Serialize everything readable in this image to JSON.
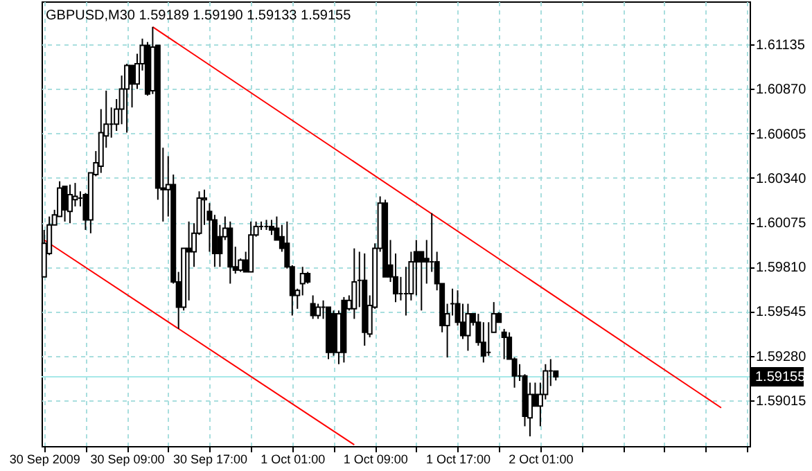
{
  "chart_data": {
    "type": "candlestick",
    "title": "GBPUSD,M30 1.59189 1.59190 1.59133 1.59155",
    "categories": [
      "30 Sep 2009",
      null,
      null,
      null,
      null,
      null,
      null,
      null,
      null,
      null,
      null,
      null,
      null,
      null,
      null,
      null,
      "30 Sep 09:00",
      null,
      null,
      null,
      null,
      null,
      null,
      null,
      null,
      null,
      null,
      null,
      null,
      null,
      null,
      null,
      "30 Sep 17:00",
      null,
      null,
      null,
      null,
      null,
      null,
      null,
      null,
      null,
      null,
      null,
      null,
      null,
      null,
      null,
      "1 Oct 01:00",
      null,
      null,
      null,
      null,
      null,
      null,
      null,
      null,
      null,
      null,
      null,
      null,
      null,
      null,
      null,
      "1 Oct 09:00",
      null,
      null,
      null,
      null,
      null,
      null,
      null,
      null,
      null,
      null,
      null,
      null,
      null,
      null,
      null,
      "1 Oct 17:00",
      null,
      null,
      null,
      null,
      null,
      null,
      null,
      null,
      null,
      null,
      null,
      null,
      null,
      null,
      null,
      "2 Oct 01:00",
      null,
      null,
      null,
      null,
      null,
      null,
      null,
      null,
      null,
      null,
      null,
      null,
      null,
      null,
      null,
      null,
      null,
      null,
      null,
      null,
      null,
      null,
      null,
      null,
      null,
      null,
      null,
      null,
      null,
      null,
      null,
      null,
      null,
      null,
      null,
      null,
      null,
      null,
      null,
      null
    ],
    "ohlc": [
      [
        1.5975,
        1.6003,
        1.5975,
        1.5995
      ],
      [
        1.5989,
        1.6011,
        1.5988,
        1.6006
      ],
      [
        1.6006,
        1.6015,
        1.6006,
        1.6012
      ],
      [
        1.6011,
        1.6032,
        1.6011,
        1.6028
      ],
      [
        1.6029,
        1.6029,
        1.6008,
        1.6015
      ],
      [
        1.6014,
        1.603,
        1.6007,
        1.6024
      ],
      [
        1.6021,
        1.6031,
        1.6017,
        1.6023
      ],
      [
        1.6022,
        1.6026,
        1.6017,
        1.6022
      ],
      [
        1.6024,
        1.6025,
        1.6003,
        1.6009
      ],
      [
        1.6009,
        1.6037,
        1.6001,
        1.6037
      ],
      [
        1.6036,
        1.605,
        1.6035,
        1.6043
      ],
      [
        1.6041,
        1.6075,
        1.6037,
        1.6061
      ],
      [
        1.6059,
        1.6086,
        1.6052,
        1.6066
      ],
      [
        1.6066,
        1.6076,
        1.6058,
        1.6066
      ],
      [
        1.6066,
        1.6081,
        1.6062,
        1.6075
      ],
      [
        1.6075,
        1.6095,
        1.6066,
        1.6087
      ],
      [
        1.6087,
        1.6102,
        1.6061,
        1.6101
      ],
      [
        1.6101,
        1.6101,
        1.6076,
        1.609
      ],
      [
        1.609,
        1.6108,
        1.6087,
        1.6102
      ],
      [
        1.6102,
        1.6117,
        1.6098,
        1.6113
      ],
      [
        1.6113,
        1.6115,
        1.6083,
        1.6084
      ],
      [
        1.6086,
        1.6124,
        1.6084,
        1.6112
      ],
      [
        1.6113,
        1.6113,
        1.6021,
        1.6028
      ],
      [
        1.6028,
        1.6052,
        1.6008,
        1.6027
      ],
      [
        1.6027,
        1.6047,
        1.6011,
        1.603
      ],
      [
        1.603,
        1.6036,
        1.5971,
        1.5972
      ],
      [
        1.5972,
        1.5978,
        1.5944,
        1.5957
      ],
      [
        1.5957,
        1.5992,
        1.5955,
        1.5992
      ],
      [
        1.5992,
        1.6008,
        1.5961,
        1.599
      ],
      [
        1.599,
        1.6007,
        1.5981,
        1.6001
      ],
      [
        1.6001,
        1.6026,
        1.6,
        1.6022
      ],
      [
        1.6021,
        1.6027,
        1.6006,
        1.6022
      ],
      [
        1.6014,
        1.6019,
        1.599,
        1.6009
      ],
      [
        1.6009,
        1.6012,
        1.5981,
        1.5989
      ],
      [
        1.5999,
        1.6006,
        1.5981,
        1.5989
      ],
      [
        1.5999,
        1.6011,
        1.5997,
        1.6004
      ],
      [
        1.6004,
        1.6008,
        1.5971,
        1.5981
      ],
      [
        1.5981,
        1.5993,
        1.5977,
        1.5979
      ],
      [
        1.5979,
        1.5986,
        1.5978,
        1.5985
      ],
      [
        1.5985,
        1.599,
        1.5978,
        1.5978
      ],
      [
        1.5978,
        1.6008,
        1.5978,
        1.6
      ],
      [
        1.6,
        1.6008,
        1.5999,
        1.6005
      ],
      [
        1.6005,
        1.6008,
        1.6003,
        1.6005
      ],
      [
        1.6005,
        1.6009,
        1.6003,
        1.6005
      ],
      [
        1.6005,
        1.6009,
        1.6,
        1.6003
      ],
      [
        1.6004,
        1.6011,
        1.5997,
        1.5997
      ],
      [
        1.5999,
        1.6006,
        1.599,
        1.5992
      ],
      [
        1.5995,
        1.6008,
        1.598,
        1.5981
      ],
      [
        1.5981,
        1.5982,
        1.5952,
        1.5964
      ],
      [
        1.5964,
        1.5968,
        1.5956,
        1.5967
      ],
      [
        1.5971,
        1.5981,
        1.5964,
        1.5977
      ],
      [
        1.5977,
        1.5978,
        1.5971,
        1.5972
      ],
      [
        1.5959,
        1.5964,
        1.595,
        1.5952
      ],
      [
        1.5952,
        1.5959,
        1.595,
        1.5957
      ],
      [
        1.5957,
        1.5961,
        1.595,
        1.5957
      ],
      [
        1.5957,
        1.5957,
        1.5926,
        1.593
      ],
      [
        1.5953,
        1.5955,
        1.5928,
        1.593
      ],
      [
        1.593,
        1.5955,
        1.5923,
        1.5953
      ],
      [
        1.5961,
        1.5963,
        1.5924,
        1.593
      ],
      [
        1.5956,
        1.5964,
        1.5955,
        1.5961
      ],
      [
        1.5956,
        1.5992,
        1.595,
        1.5972
      ],
      [
        1.5973,
        1.599,
        1.5957,
        1.5973
      ],
      [
        1.5973,
        1.5989,
        1.5934,
        1.5942
      ],
      [
        1.5941,
        1.5964,
        1.5939,
        1.5958
      ],
      [
        1.5957,
        1.5995,
        1.5956,
        1.5992
      ],
      [
        1.5992,
        1.6023,
        1.599,
        1.6019
      ],
      [
        1.6019,
        1.6021,
        1.5975,
        1.5975
      ],
      [
        1.5982,
        1.5997,
        1.5972,
        1.5975
      ],
      [
        1.5975,
        1.5989,
        1.596,
        1.5965
      ],
      [
        1.5965,
        1.5975,
        1.5961,
        1.5965
      ],
      [
        1.5965,
        1.5981,
        1.5952,
        1.5965
      ],
      [
        1.5965,
        1.599,
        1.5961,
        1.5984
      ],
      [
        1.599,
        1.5997,
        1.5964,
        1.5984
      ],
      [
        1.599,
        1.599,
        1.5955,
        1.5984
      ],
      [
        1.5986,
        1.5997,
        1.5971,
        1.5984
      ],
      [
        1.5984,
        1.6013,
        1.5978,
        1.5984
      ],
      [
        1.5984,
        1.599,
        1.5967,
        1.5971
      ],
      [
        1.5971,
        1.5971,
        1.5942,
        1.5946
      ],
      [
        1.5946,
        1.5959,
        1.5927,
        1.5953
      ],
      [
        1.5959,
        1.5968,
        1.5952,
        1.5959
      ],
      [
        1.5959,
        1.5967,
        1.5946,
        1.5948
      ],
      [
        1.5948,
        1.5959,
        1.5938,
        1.594
      ],
      [
        1.594,
        1.5959,
        1.5931,
        1.5953
      ],
      [
        1.5953,
        1.5953,
        1.5946,
        1.5948
      ],
      [
        1.5948,
        1.5953,
        1.5934,
        1.5936
      ],
      [
        1.5936,
        1.5948,
        1.5924,
        1.5928
      ],
      [
        1.593,
        1.5948,
        1.5928,
        1.593
      ],
      [
        1.5942,
        1.596,
        1.5942,
        1.5953
      ],
      [
        1.5953,
        1.5954,
        1.5948,
        1.5948
      ],
      [
        1.5942,
        1.5944,
        1.5926,
        1.5939
      ],
      [
        1.5939,
        1.5942,
        1.5926,
        1.5926
      ],
      [
        1.5926,
        1.5927,
        1.5909,
        1.5916
      ],
      [
        1.5916,
        1.5923,
        1.5913,
        1.5916
      ],
      [
        1.5916,
        1.5917,
        1.5886,
        1.5892
      ],
      [
        1.5891,
        1.5912,
        1.588,
        1.5905
      ],
      [
        1.5905,
        1.5912,
        1.5898,
        1.5898
      ],
      [
        1.5898,
        1.5912,
        1.5886,
        1.5905
      ],
      [
        1.5905,
        1.5923,
        1.5902,
        1.5919
      ],
      [
        1.5919,
        1.5926,
        1.591,
        1.5919
      ],
      [
        1.59189,
        1.5919,
        1.59133,
        1.59155
      ],
      null,
      null,
      null,
      null,
      null,
      null,
      null,
      null,
      null,
      null,
      null,
      null,
      null,
      null,
      null,
      null,
      null,
      null,
      null,
      null,
      null,
      null,
      null,
      null,
      null,
      null,
      null,
      null,
      null,
      null,
      null,
      null,
      null,
      null,
      null,
      null,
      null
    ],
    "series": [
      {
        "type": "line",
        "color": "#ff0000",
        "values": [
          null,
          null,
          null,
          null,
          null,
          null,
          null,
          null,
          null,
          null,
          null,
          null,
          null,
          null,
          null,
          null,
          null,
          null,
          null,
          null,
          null,
          1.6124,
          null,
          null,
          null,
          null,
          null,
          null,
          null,
          null,
          null,
          null,
          null,
          null,
          null,
          null,
          null,
          null,
          null,
          null,
          null,
          null,
          null,
          null,
          null,
          null,
          null,
          null,
          null,
          null,
          null,
          null,
          null,
          null,
          null,
          null,
          null,
          null,
          null,
          null,
          null,
          null,
          null,
          null,
          null,
          null,
          null,
          null,
          null,
          null,
          null,
          null,
          null,
          null,
          null,
          null,
          null,
          null,
          null,
          null,
          null,
          null,
          null,
          null,
          null,
          null,
          null,
          null,
          null,
          null,
          null,
          null,
          null,
          null,
          null,
          null,
          null,
          null,
          null,
          null,
          null,
          null,
          null,
          null,
          null,
          null,
          null,
          null,
          null,
          null,
          null,
          null,
          null,
          null,
          null,
          null,
          null,
          null,
          null,
          null,
          null,
          null,
          null,
          null,
          null,
          null,
          null,
          null,
          null,
          null,
          null,
          1.5897,
          null,
          null,
          null,
          null,
          null
        ]
      },
      {
        "type": "line",
        "color": "#ff0000",
        "values": [
          1.5997,
          null,
          null,
          null,
          null,
          null,
          null,
          null,
          null,
          null,
          null,
          null,
          null,
          null,
          null,
          null,
          null,
          null,
          null,
          null,
          null,
          null,
          null,
          null,
          null,
          null,
          null,
          null,
          null,
          null,
          null,
          null,
          null,
          null,
          null,
          null,
          null,
          null,
          null,
          null,
          null,
          null,
          null,
          null,
          null,
          null,
          null,
          null,
          null,
          null,
          null,
          null,
          null,
          null,
          null,
          null,
          null,
          null,
          null,
          null,
          1.5875,
          null,
          null,
          null,
          null,
          null,
          null,
          null,
          null,
          null,
          null,
          null,
          null,
          null,
          null,
          null,
          null,
          null,
          null,
          null,
          null,
          null,
          null,
          null,
          null,
          null,
          null,
          null,
          null,
          null,
          null,
          null,
          null,
          null,
          null,
          null,
          null,
          null,
          null,
          null,
          null,
          null,
          null,
          null,
          null,
          null,
          null,
          null,
          null,
          null,
          null,
          null,
          null,
          null,
          null,
          null,
          null,
          null,
          null,
          null,
          null,
          null,
          null,
          null,
          null,
          null,
          null,
          null,
          null,
          null,
          null,
          null,
          null,
          null,
          null,
          null,
          null
        ]
      }
    ],
    "ylim": [
      1.58742,
      1.61392
    ],
    "yticks": [
      1.59015,
      {
        "value": 1.5928,
        "label": "1.59280"
      },
      1.59545,
      {
        "value": 1.5981,
        "label": "1.59810"
      },
      1.60075,
      {
        "value": 1.6034,
        "label": "1.60340"
      },
      1.60605,
      {
        "value": 1.6087,
        "label": "1.60870"
      },
      1.61135
    ],
    "ref_lines": [
      {
        "axis": "y",
        "value": 1.59155,
        "label": "1.59155",
        "color": "#a6e8e8"
      }
    ],
    "grid": true,
    "line_style": "solid"
  }
}
